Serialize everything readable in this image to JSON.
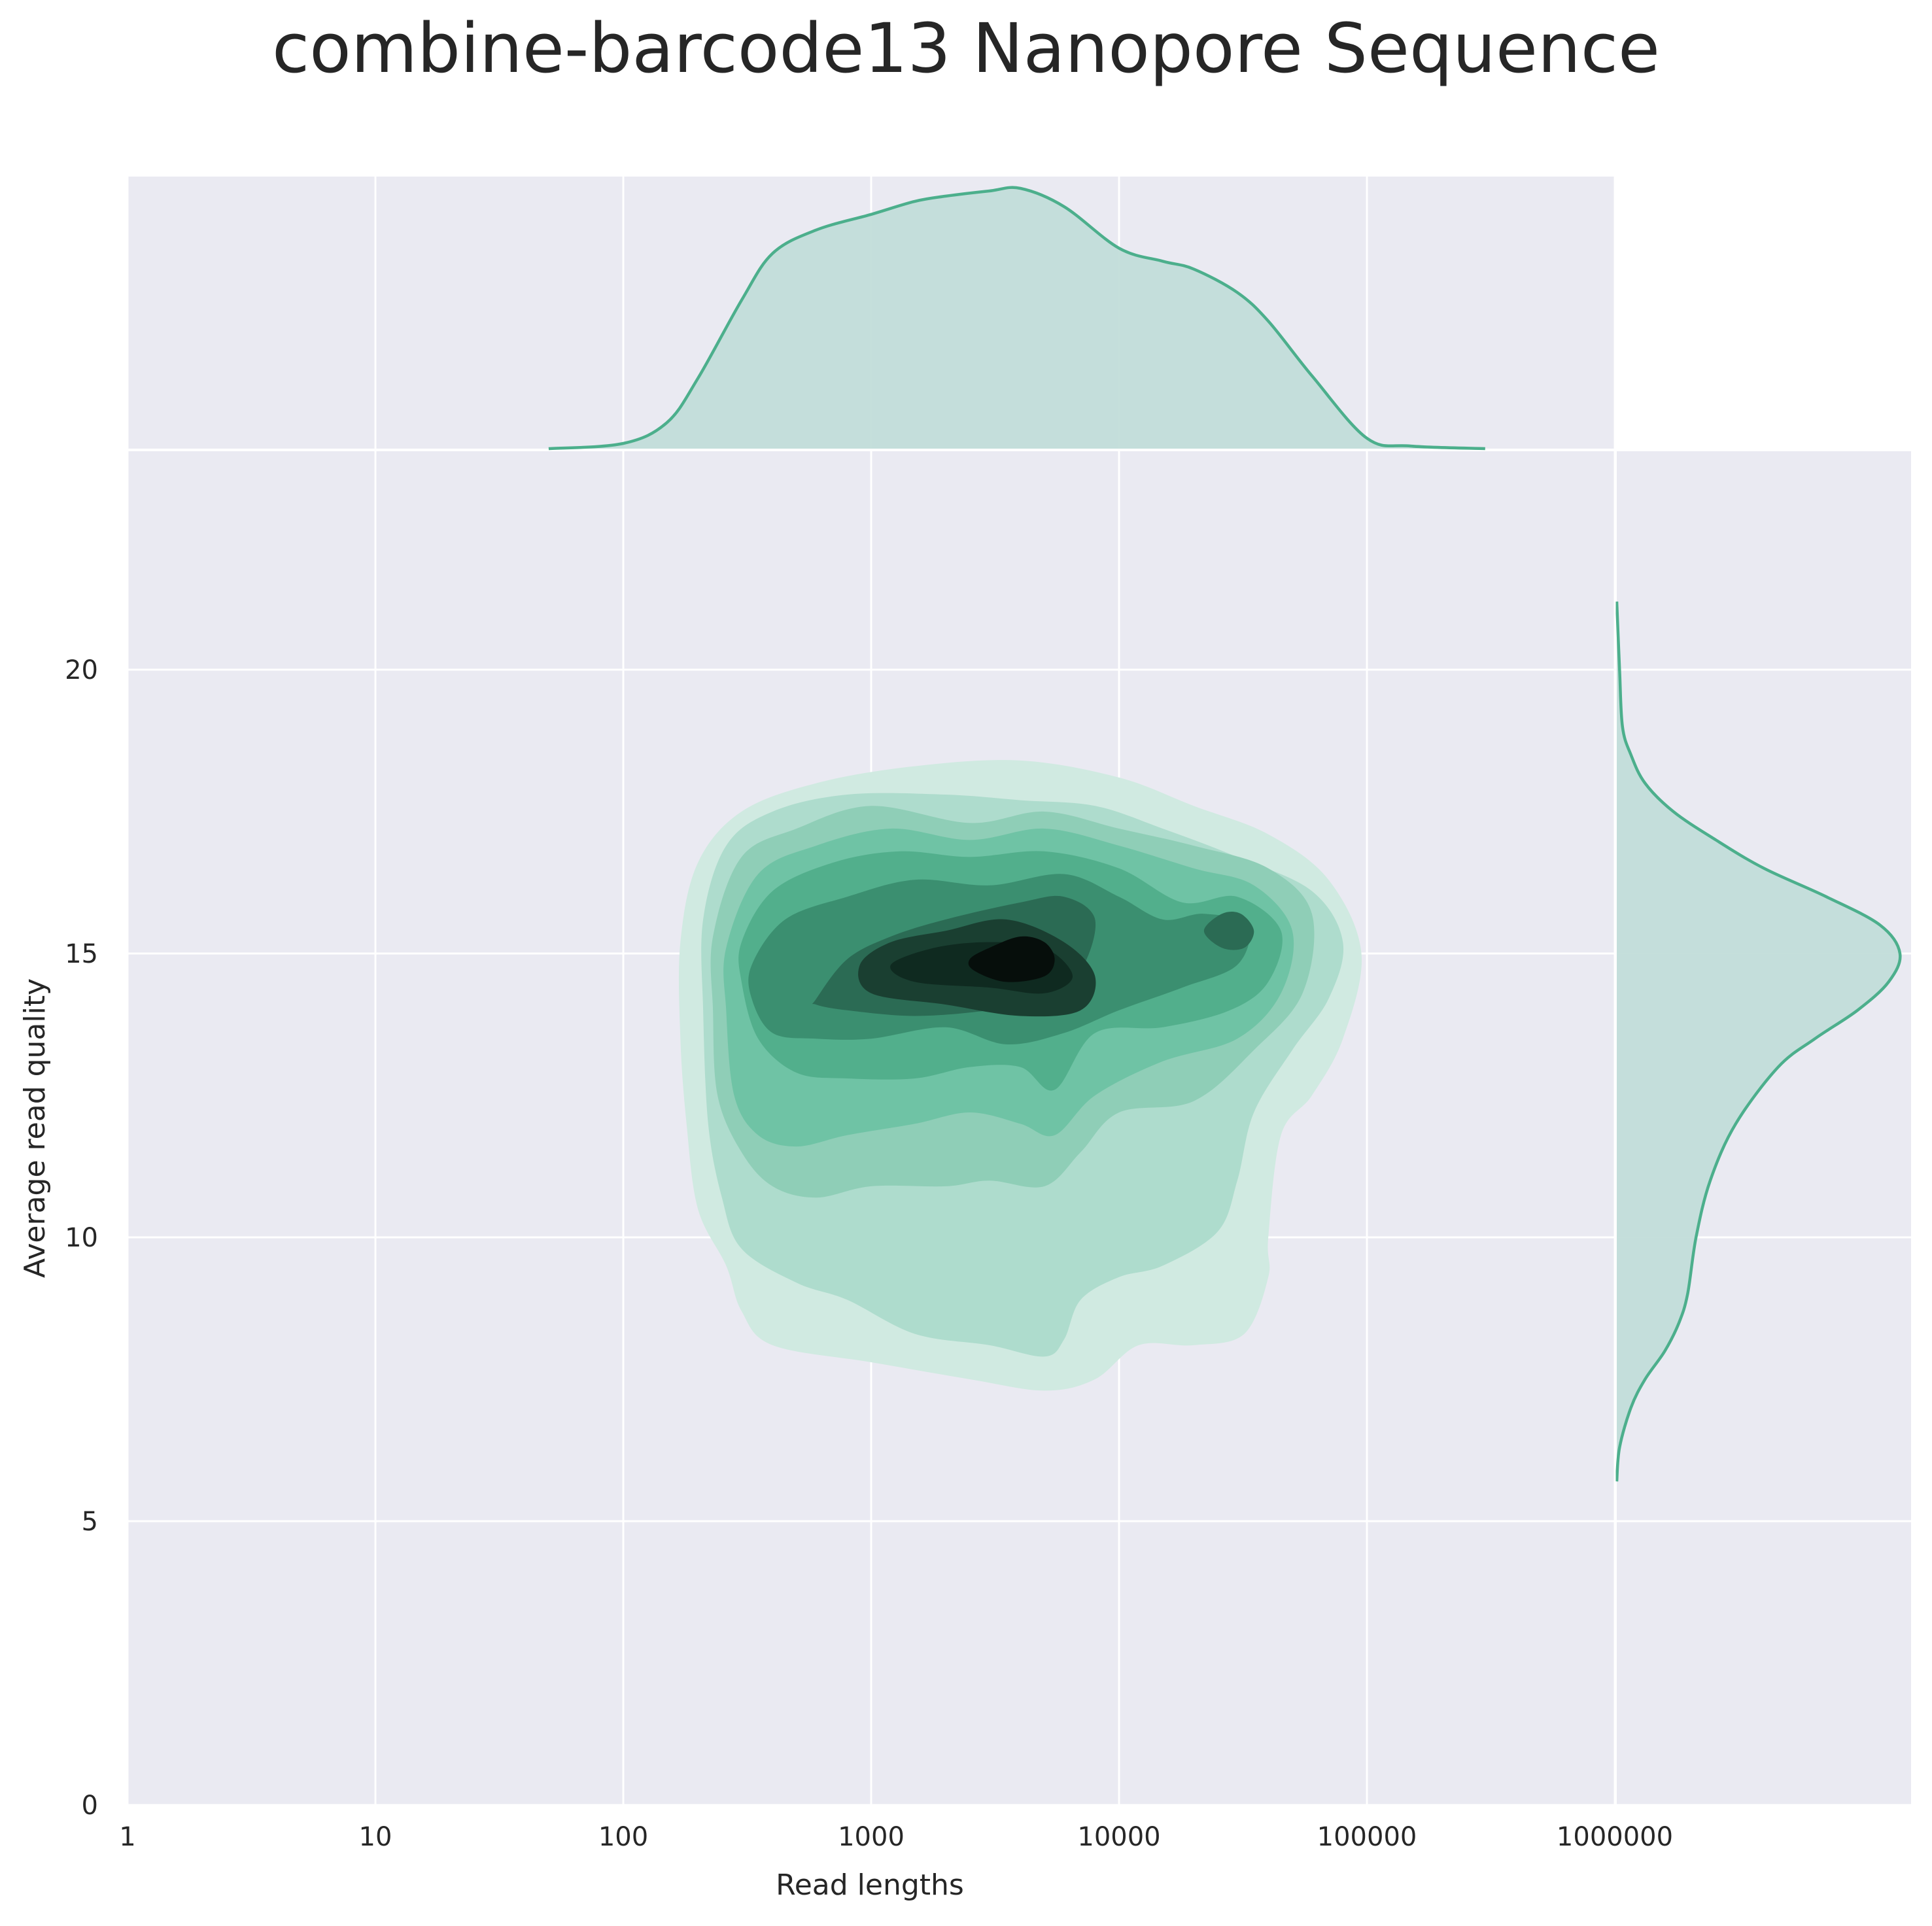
{
  "chart_data": {
    "type": "kde_joint",
    "title": "combine-barcode13 Nanopore Sequence",
    "xlabel": "Read lengths",
    "ylabel": "Average read quality",
    "x_scale": "log10",
    "xlim": [
      1,
      10000000
    ],
    "ylim": [
      0,
      24
    ],
    "x_ticks": [
      1,
      10,
      100,
      1000,
      10000,
      100000,
      1000000
    ],
    "x_tick_labels": [
      "1",
      "10",
      "100",
      "1000",
      "10000",
      "100000",
      "1000000"
    ],
    "y_ticks": [
      0,
      5,
      10,
      15,
      20
    ],
    "y_tick_labels": [
      "0",
      "5",
      "10",
      "15",
      "20"
    ],
    "grid": true,
    "density_peak": {
      "read_length": 4000,
      "quality": 14.9
    },
    "secondary_peak": {
      "read_length": 30000,
      "quality": 15.4
    },
    "x_marginal": {
      "read_length": [
        50,
        100,
        150,
        200,
        300,
        400,
        600,
        1000,
        1500,
        2000,
        3000,
        4000,
        6000,
        10000,
        15000,
        20000,
        30000,
        40000,
        60000,
        100000,
        150000,
        300000
      ],
      "density": [
        0.0,
        0.02,
        0.1,
        0.27,
        0.57,
        0.75,
        0.84,
        0.9,
        0.95,
        0.97,
        0.99,
        1.0,
        0.93,
        0.77,
        0.72,
        0.69,
        0.6,
        0.49,
        0.28,
        0.04,
        0.01,
        0.0
      ]
    },
    "y_marginal": {
      "quality": [
        5.7,
        6.3,
        7,
        7.5,
        8,
        8.5,
        9,
        10,
        11,
        12,
        13,
        13.5,
        14,
        14.5,
        15,
        15.5,
        16,
        16.5,
        17,
        17.5,
        18,
        18.5,
        19,
        20,
        21.2
      ],
      "density": [
        0.0,
        0.01,
        0.05,
        0.1,
        0.17,
        0.22,
        0.25,
        0.28,
        0.33,
        0.42,
        0.57,
        0.7,
        0.85,
        0.96,
        1.0,
        0.93,
        0.74,
        0.52,
        0.35,
        0.2,
        0.1,
        0.05,
        0.02,
        0.01,
        0.0
      ]
    },
    "kde_levels": [
      {
        "level": 1,
        "color": "#d0eae1",
        "points": [
          [
            170,
            15.2
          ],
          [
            200,
            16.6
          ],
          [
            300,
            17.5
          ],
          [
            600,
            18.0
          ],
          [
            1500,
            18.3
          ],
          [
            4000,
            18.4
          ],
          [
            10000,
            18.1
          ],
          [
            20000,
            17.6
          ],
          [
            40000,
            17.1
          ],
          [
            70000,
            16.3
          ],
          [
            95000,
            15.0
          ],
          [
            80000,
            13.5
          ],
          [
            60000,
            12.5
          ],
          [
            45000,
            11.8
          ],
          [
            40000,
            10.0
          ],
          [
            40000,
            9.3
          ],
          [
            32000,
            8.3
          ],
          [
            20000,
            8.1
          ],
          [
            12000,
            8.1
          ],
          [
            8000,
            7.5
          ],
          [
            5000,
            7.3
          ],
          [
            2500,
            7.5
          ],
          [
            1000,
            7.8
          ],
          [
            400,
            8.1
          ],
          [
            300,
            8.7
          ],
          [
            260,
            9.5
          ],
          [
            200,
            10.5
          ],
          [
            180,
            12.0
          ],
          [
            170,
            13.5
          ]
        ]
      },
      {
        "level": 2,
        "color": "#aedccd",
        "points": [
          [
            210,
            15.6
          ],
          [
            260,
            16.9
          ],
          [
            400,
            17.5
          ],
          [
            800,
            17.8
          ],
          [
            2000,
            17.8
          ],
          [
            4000,
            17.7
          ],
          [
            8000,
            17.6
          ],
          [
            15000,
            17.2
          ],
          [
            30000,
            16.7
          ],
          [
            60000,
            16.1
          ],
          [
            80000,
            15.2
          ],
          [
            70000,
            14.2
          ],
          [
            50000,
            13.3
          ],
          [
            35000,
            12.2
          ],
          [
            30000,
            11.0
          ],
          [
            25000,
            10.1
          ],
          [
            15000,
            9.5
          ],
          [
            10000,
            9.3
          ],
          [
            7000,
            8.9
          ],
          [
            6000,
            8.2
          ],
          [
            5000,
            7.9
          ],
          [
            3000,
            8.1
          ],
          [
            1500,
            8.3
          ],
          [
            800,
            8.9
          ],
          [
            500,
            9.2
          ],
          [
            300,
            9.8
          ],
          [
            250,
            10.7
          ],
          [
            220,
            12.0
          ],
          [
            210,
            14.0
          ]
        ]
      },
      {
        "level": 3,
        "color": "#8fceb7",
        "points": [
          [
            230,
            15.3
          ],
          [
            300,
            16.7
          ],
          [
            500,
            17.2
          ],
          [
            1000,
            17.6
          ],
          [
            2500,
            17.3
          ],
          [
            5000,
            17.5
          ],
          [
            10000,
            17.2
          ],
          [
            20000,
            16.9
          ],
          [
            40000,
            16.5
          ],
          [
            60000,
            15.7
          ],
          [
            55000,
            14.3
          ],
          [
            35000,
            13.3
          ],
          [
            20000,
            12.4
          ],
          [
            10000,
            12.2
          ],
          [
            7000,
            11.5
          ],
          [
            5000,
            10.9
          ],
          [
            3000,
            11.0
          ],
          [
            2000,
            10.9
          ],
          [
            1000,
            10.9
          ],
          [
            600,
            10.7
          ],
          [
            400,
            10.9
          ],
          [
            300,
            11.5
          ],
          [
            240,
            12.5
          ],
          [
            230,
            14.0
          ]
        ]
      },
      {
        "level": 4,
        "color": "#6fc3a5",
        "points": [
          [
            260,
            15.1
          ],
          [
            350,
            16.4
          ],
          [
            600,
            16.9
          ],
          [
            1200,
            17.2
          ],
          [
            2500,
            17.0
          ],
          [
            5000,
            17.2
          ],
          [
            10000,
            16.9
          ],
          [
            20000,
            16.5
          ],
          [
            35000,
            16.2
          ],
          [
            50000,
            15.4
          ],
          [
            45000,
            14.3
          ],
          [
            30000,
            13.5
          ],
          [
            15000,
            13.1
          ],
          [
            8000,
            12.5
          ],
          [
            5500,
            11.8
          ],
          [
            4000,
            12.0
          ],
          [
            2500,
            12.2
          ],
          [
            1500,
            12.0
          ],
          [
            800,
            11.8
          ],
          [
            500,
            11.6
          ],
          [
            350,
            11.8
          ],
          [
            280,
            12.5
          ],
          [
            260,
            14.0
          ]
        ]
      },
      {
        "level": 5,
        "color": "#52af8c",
        "points": [
          [
            300,
            15.2
          ],
          [
            400,
            16.1
          ],
          [
            700,
            16.6
          ],
          [
            1300,
            16.8
          ],
          [
            2500,
            16.7
          ],
          [
            5000,
            16.8
          ],
          [
            10000,
            16.5
          ],
          [
            18000,
            15.9
          ],
          [
            30000,
            16.0
          ],
          [
            45000,
            15.4
          ],
          [
            40000,
            14.5
          ],
          [
            28000,
            14.0
          ],
          [
            15000,
            13.7
          ],
          [
            8000,
            13.6
          ],
          [
            5500,
            12.6
          ],
          [
            4000,
            13.0
          ],
          [
            2500,
            13.0
          ],
          [
            1500,
            12.8
          ],
          [
            800,
            12.8
          ],
          [
            500,
            12.9
          ],
          [
            350,
            13.5
          ],
          [
            300,
            14.5
          ]
        ]
      },
      {
        "level": 6,
        "color": "#3b8f70",
        "points": [
          [
            330,
            14.8
          ],
          [
            450,
            15.6
          ],
          [
            800,
            16.0
          ],
          [
            1500,
            16.3
          ],
          [
            3000,
            16.2
          ],
          [
            6000,
            16.4
          ],
          [
            10000,
            16.0
          ],
          [
            15000,
            15.6
          ],
          [
            22000,
            15.7
          ],
          [
            33000,
            15.5
          ],
          [
            30000,
            14.8
          ],
          [
            18000,
            14.4
          ],
          [
            10000,
            14.0
          ],
          [
            6000,
            13.6
          ],
          [
            3500,
            13.4
          ],
          [
            2000,
            13.7
          ],
          [
            1000,
            13.5
          ],
          [
            600,
            13.5
          ],
          [
            400,
            13.6
          ],
          [
            330,
            14.2
          ]
        ]
      },
      {
        "level": 7,
        "color": "#2b6b54",
        "points": [
          [
            600,
            14.2
          ],
          [
            800,
            14.9
          ],
          [
            1200,
            15.3
          ],
          [
            2000,
            15.6
          ],
          [
            4000,
            15.9
          ],
          [
            6000,
            16.0
          ],
          [
            8000,
            15.6
          ],
          [
            7000,
            14.7
          ],
          [
            5000,
            14.2
          ],
          [
            3000,
            14.0
          ],
          [
            1500,
            13.9
          ],
          [
            800,
            14.0
          ],
          [
            600,
            14.1
          ]
        ]
      },
      {
        "level": 8,
        "color": "#1a3f31",
        "points": [
          [
            900,
            14.8
          ],
          [
            1200,
            15.2
          ],
          [
            2000,
            15.4
          ],
          [
            3500,
            15.6
          ],
          [
            6000,
            15.2
          ],
          [
            8000,
            14.6
          ],
          [
            7000,
            14.0
          ],
          [
            4000,
            13.9
          ],
          [
            2000,
            14.1
          ],
          [
            1000,
            14.3
          ]
        ]
      },
      {
        "level": 9,
        "color": "#0f2a20",
        "points": [
          [
            1200,
            14.8
          ],
          [
            1800,
            15.1
          ],
          [
            3000,
            15.2
          ],
          [
            5000,
            15.1
          ],
          [
            6500,
            14.6
          ],
          [
            5000,
            14.3
          ],
          [
            3000,
            14.4
          ],
          [
            1500,
            14.5
          ]
        ]
      },
      {
        "level": 10,
        "color": "#060e0b",
        "points": [
          [
            2500,
            14.9
          ],
          [
            3000,
            15.1
          ],
          [
            4000,
            15.3
          ],
          [
            5000,
            15.2
          ],
          [
            5500,
            14.9
          ],
          [
            5000,
            14.6
          ],
          [
            3500,
            14.5
          ],
          [
            2600,
            14.7
          ]
        ]
      },
      {
        "level": 11,
        "color": "#2b6b54",
        "points": [
          [
            22000,
            15.4
          ],
          [
            26000,
            15.7
          ],
          [
            31000,
            15.7
          ],
          [
            35000,
            15.4
          ],
          [
            32000,
            15.1
          ],
          [
            26000,
            15.1
          ]
        ]
      }
    ],
    "colors": {
      "line": "#4caf8c",
      "fill": "#c2ddd9",
      "panel_bg": "#eaeaf2",
      "grid": "#ffffff",
      "text": "#262626"
    }
  }
}
